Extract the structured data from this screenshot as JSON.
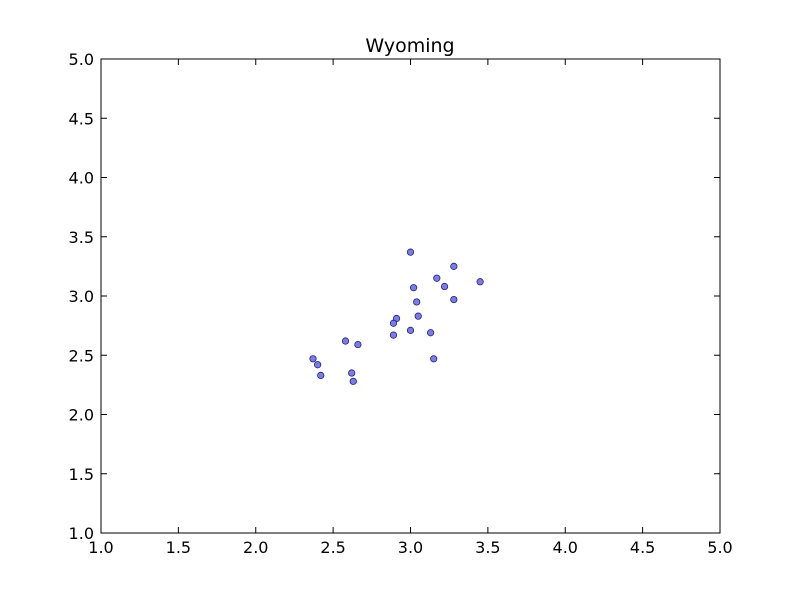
{
  "chart_data": {
    "type": "scatter",
    "title": "Wyoming",
    "xlabel": "",
    "ylabel": "",
    "xlim": [
      1.0,
      5.0
    ],
    "ylim": [
      1.0,
      5.0
    ],
    "xticks": [
      "1.0",
      "1.5",
      "2.0",
      "2.5",
      "3.0",
      "3.5",
      "4.0",
      "4.5",
      "5.0"
    ],
    "yticks": [
      "1.0",
      "1.5",
      "2.0",
      "2.5",
      "3.0",
      "3.5",
      "4.0",
      "4.5",
      "5.0"
    ],
    "grid": false,
    "marker_color": "#6f6fd6",
    "marker_edge_color": "#1f1f8f",
    "series": [
      {
        "points": [
          [
            3.0,
            3.37
          ],
          [
            3.28,
            3.25
          ],
          [
            3.17,
            3.15
          ],
          [
            3.45,
            3.12
          ],
          [
            3.02,
            3.07
          ],
          [
            3.22,
            3.08
          ],
          [
            3.04,
            2.95
          ],
          [
            3.28,
            2.97
          ],
          [
            3.05,
            2.83
          ],
          [
            2.91,
            2.81
          ],
          [
            2.89,
            2.77
          ],
          [
            3.0,
            2.71
          ],
          [
            3.13,
            2.69
          ],
          [
            2.89,
            2.67
          ],
          [
            2.58,
            2.62
          ],
          [
            2.66,
            2.59
          ],
          [
            2.37,
            2.47
          ],
          [
            3.15,
            2.47
          ],
          [
            2.4,
            2.42
          ],
          [
            2.62,
            2.35
          ],
          [
            2.42,
            2.33
          ],
          [
            2.63,
            2.28
          ]
        ]
      }
    ]
  }
}
